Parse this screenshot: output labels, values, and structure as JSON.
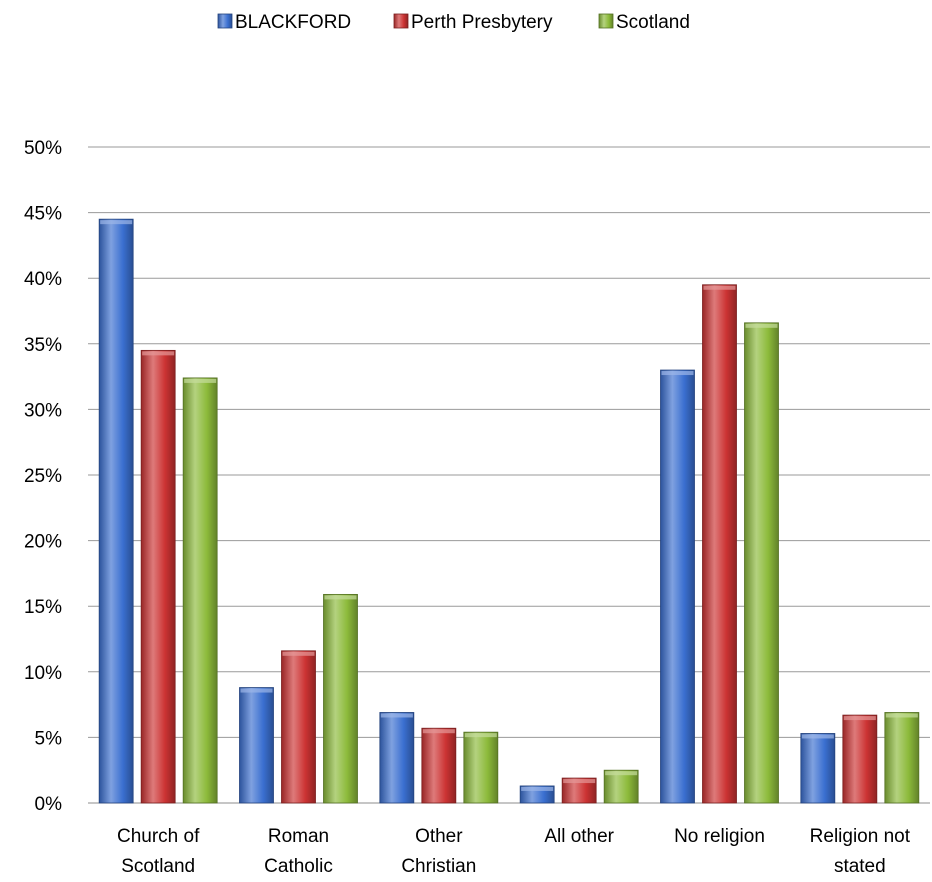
{
  "chart_data": {
    "type": "bar",
    "title": "",
    "xlabel": "",
    "ylabel": "",
    "ylim": [
      0,
      0.5
    ],
    "ytick_step": 0.05,
    "grid": true,
    "legend_position": "top-center",
    "categories": [
      [
        "Church of",
        "Scotland"
      ],
      [
        "Roman",
        "Catholic"
      ],
      [
        "Other",
        "Christian"
      ],
      [
        "All other"
      ],
      [
        "No religion"
      ],
      [
        "Religion not",
        "stated"
      ]
    ],
    "yticks": [
      "0%",
      "5%",
      "10%",
      "15%",
      "20%",
      "25%",
      "30%",
      "35%",
      "40%",
      "45%",
      "50%"
    ],
    "series": [
      {
        "name": "BLACKFORD",
        "color": "#3a6fd0",
        "values": [
          0.445,
          0.088,
          0.069,
          0.013,
          0.33,
          0.053
        ]
      },
      {
        "name": "Perth Presbytery",
        "color": "#cc3333",
        "values": [
          0.345,
          0.116,
          0.057,
          0.019,
          0.395,
          0.067
        ]
      },
      {
        "name": "Scotland",
        "color": "#8cba3a",
        "values": [
          0.324,
          0.159,
          0.054,
          0.025,
          0.366,
          0.069
        ]
      }
    ]
  }
}
